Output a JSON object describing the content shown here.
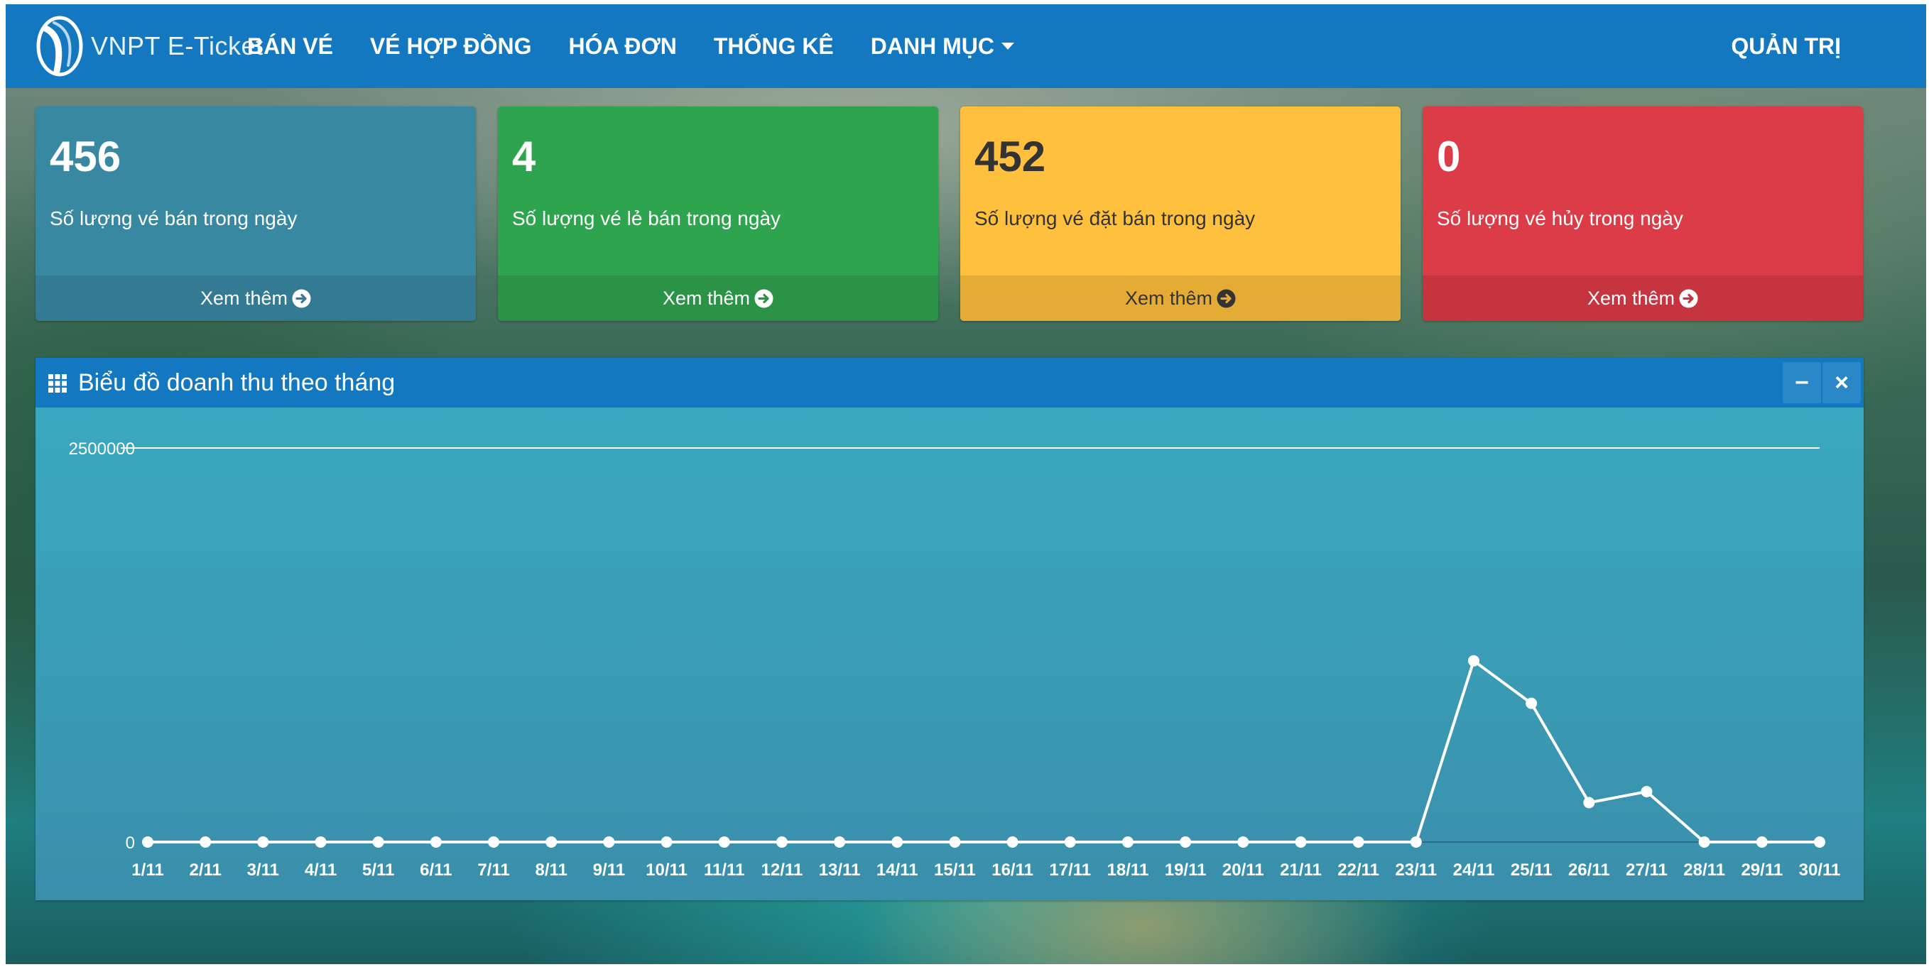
{
  "navbar": {
    "brand": "VNPT E-Ticket",
    "items": [
      "BÁN VÉ",
      "VÉ HỢP ĐỒNG",
      "HÓA ĐƠN",
      "THỐNG KÊ",
      "DANH MỤC"
    ],
    "right": "QUẢN TRỊ"
  },
  "cards": [
    {
      "number": "456",
      "label": "Số lượng vé bán trong ngày",
      "footer": "Xem thêm",
      "color": "#3988a2"
    },
    {
      "number": "4",
      "label": "Số lượng vé lẻ bán trong ngày",
      "footer": "Xem thêm",
      "color": "#2fa44f"
    },
    {
      "number": "452",
      "label": "Số lượng vé đặt bán trong ngày",
      "footer": "Xem thêm",
      "color": "#ffc03e"
    },
    {
      "number": "0",
      "label": "Số lượng vé hủy trong ngày",
      "footer": "Xem thêm",
      "color": "#dc3c47"
    }
  ],
  "panel": {
    "title": "Biểu đồ doanh thu theo tháng",
    "minimize_label": "−",
    "close_label": "×"
  },
  "chart_data": {
    "type": "line",
    "title": "",
    "xlabel": "",
    "ylabel": "",
    "ylim": [
      0,
      2500000
    ],
    "yticks": [
      "0",
      "2500000"
    ],
    "grid": false,
    "categories": [
      "1/11",
      "2/11",
      "3/11",
      "4/11",
      "5/11",
      "6/11",
      "7/11",
      "8/11",
      "9/11",
      "10/11",
      "11/11",
      "12/11",
      "13/11",
      "14/11",
      "15/11",
      "16/11",
      "17/11",
      "18/11",
      "19/11",
      "20/11",
      "21/11",
      "22/11",
      "23/11",
      "24/11",
      "25/11",
      "26/11",
      "27/11",
      "28/11",
      "29/11",
      "30/11"
    ],
    "series": [
      {
        "values": [
          0,
          0,
          0,
          0,
          0,
          0,
          0,
          0,
          0,
          0,
          0,
          0,
          0,
          0,
          0,
          0,
          0,
          0,
          0,
          0,
          0,
          0,
          0,
          1150000,
          880000,
          250000,
          320000,
          0,
          0,
          0
        ]
      }
    ]
  }
}
